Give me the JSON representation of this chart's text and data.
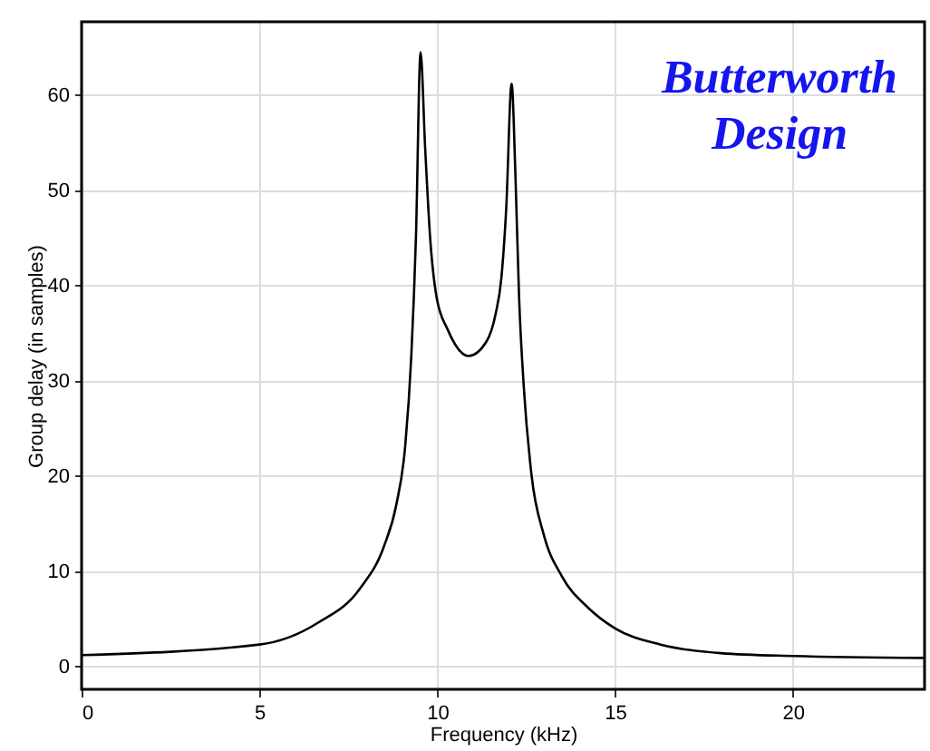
{
  "chart_data": {
    "type": "line",
    "xlabel": "Frequency (kHz)",
    "ylabel": "Group delay (in samples)",
    "annotations": [
      "Butterworth\nDesign"
    ],
    "series": [
      {
        "color": "#000000",
        "x": [
          0,
          5,
          6.65,
          7.83,
          8.5,
          8.85,
          9.1,
          9.27,
          9.4,
          9.53,
          9.66,
          9.8,
          9.98,
          10.29,
          10.88,
          11.38,
          11.64,
          11.8,
          11.94,
          12.09,
          12.2,
          12.3,
          12.43,
          12.65,
          12.99,
          13.5,
          14.26,
          15,
          16.28,
          17.97,
          20,
          23.7
        ],
        "values": [
          1.2,
          2.3,
          4.6,
          8.2,
          12.6,
          17,
          23.2,
          32.6,
          45,
          64.5,
          54.4,
          45,
          38.8,
          35.4,
          32.6,
          34.1,
          37,
          40.7,
          48.2,
          61.2,
          51.3,
          38.8,
          29.5,
          20.1,
          13.9,
          9.5,
          6.1,
          4,
          2.3,
          1.4,
          1.1,
          0.9
        ]
      }
    ],
    "xlim": [
      0,
      23.7
    ],
    "ylim": [
      -2.4,
      67.7
    ],
    "xticks": [
      0,
      5,
      10,
      15,
      20
    ],
    "yticks": [
      0,
      10,
      20,
      30,
      40,
      50,
      60
    ],
    "grid": true,
    "marker": "none",
    "line_style": "solid"
  }
}
